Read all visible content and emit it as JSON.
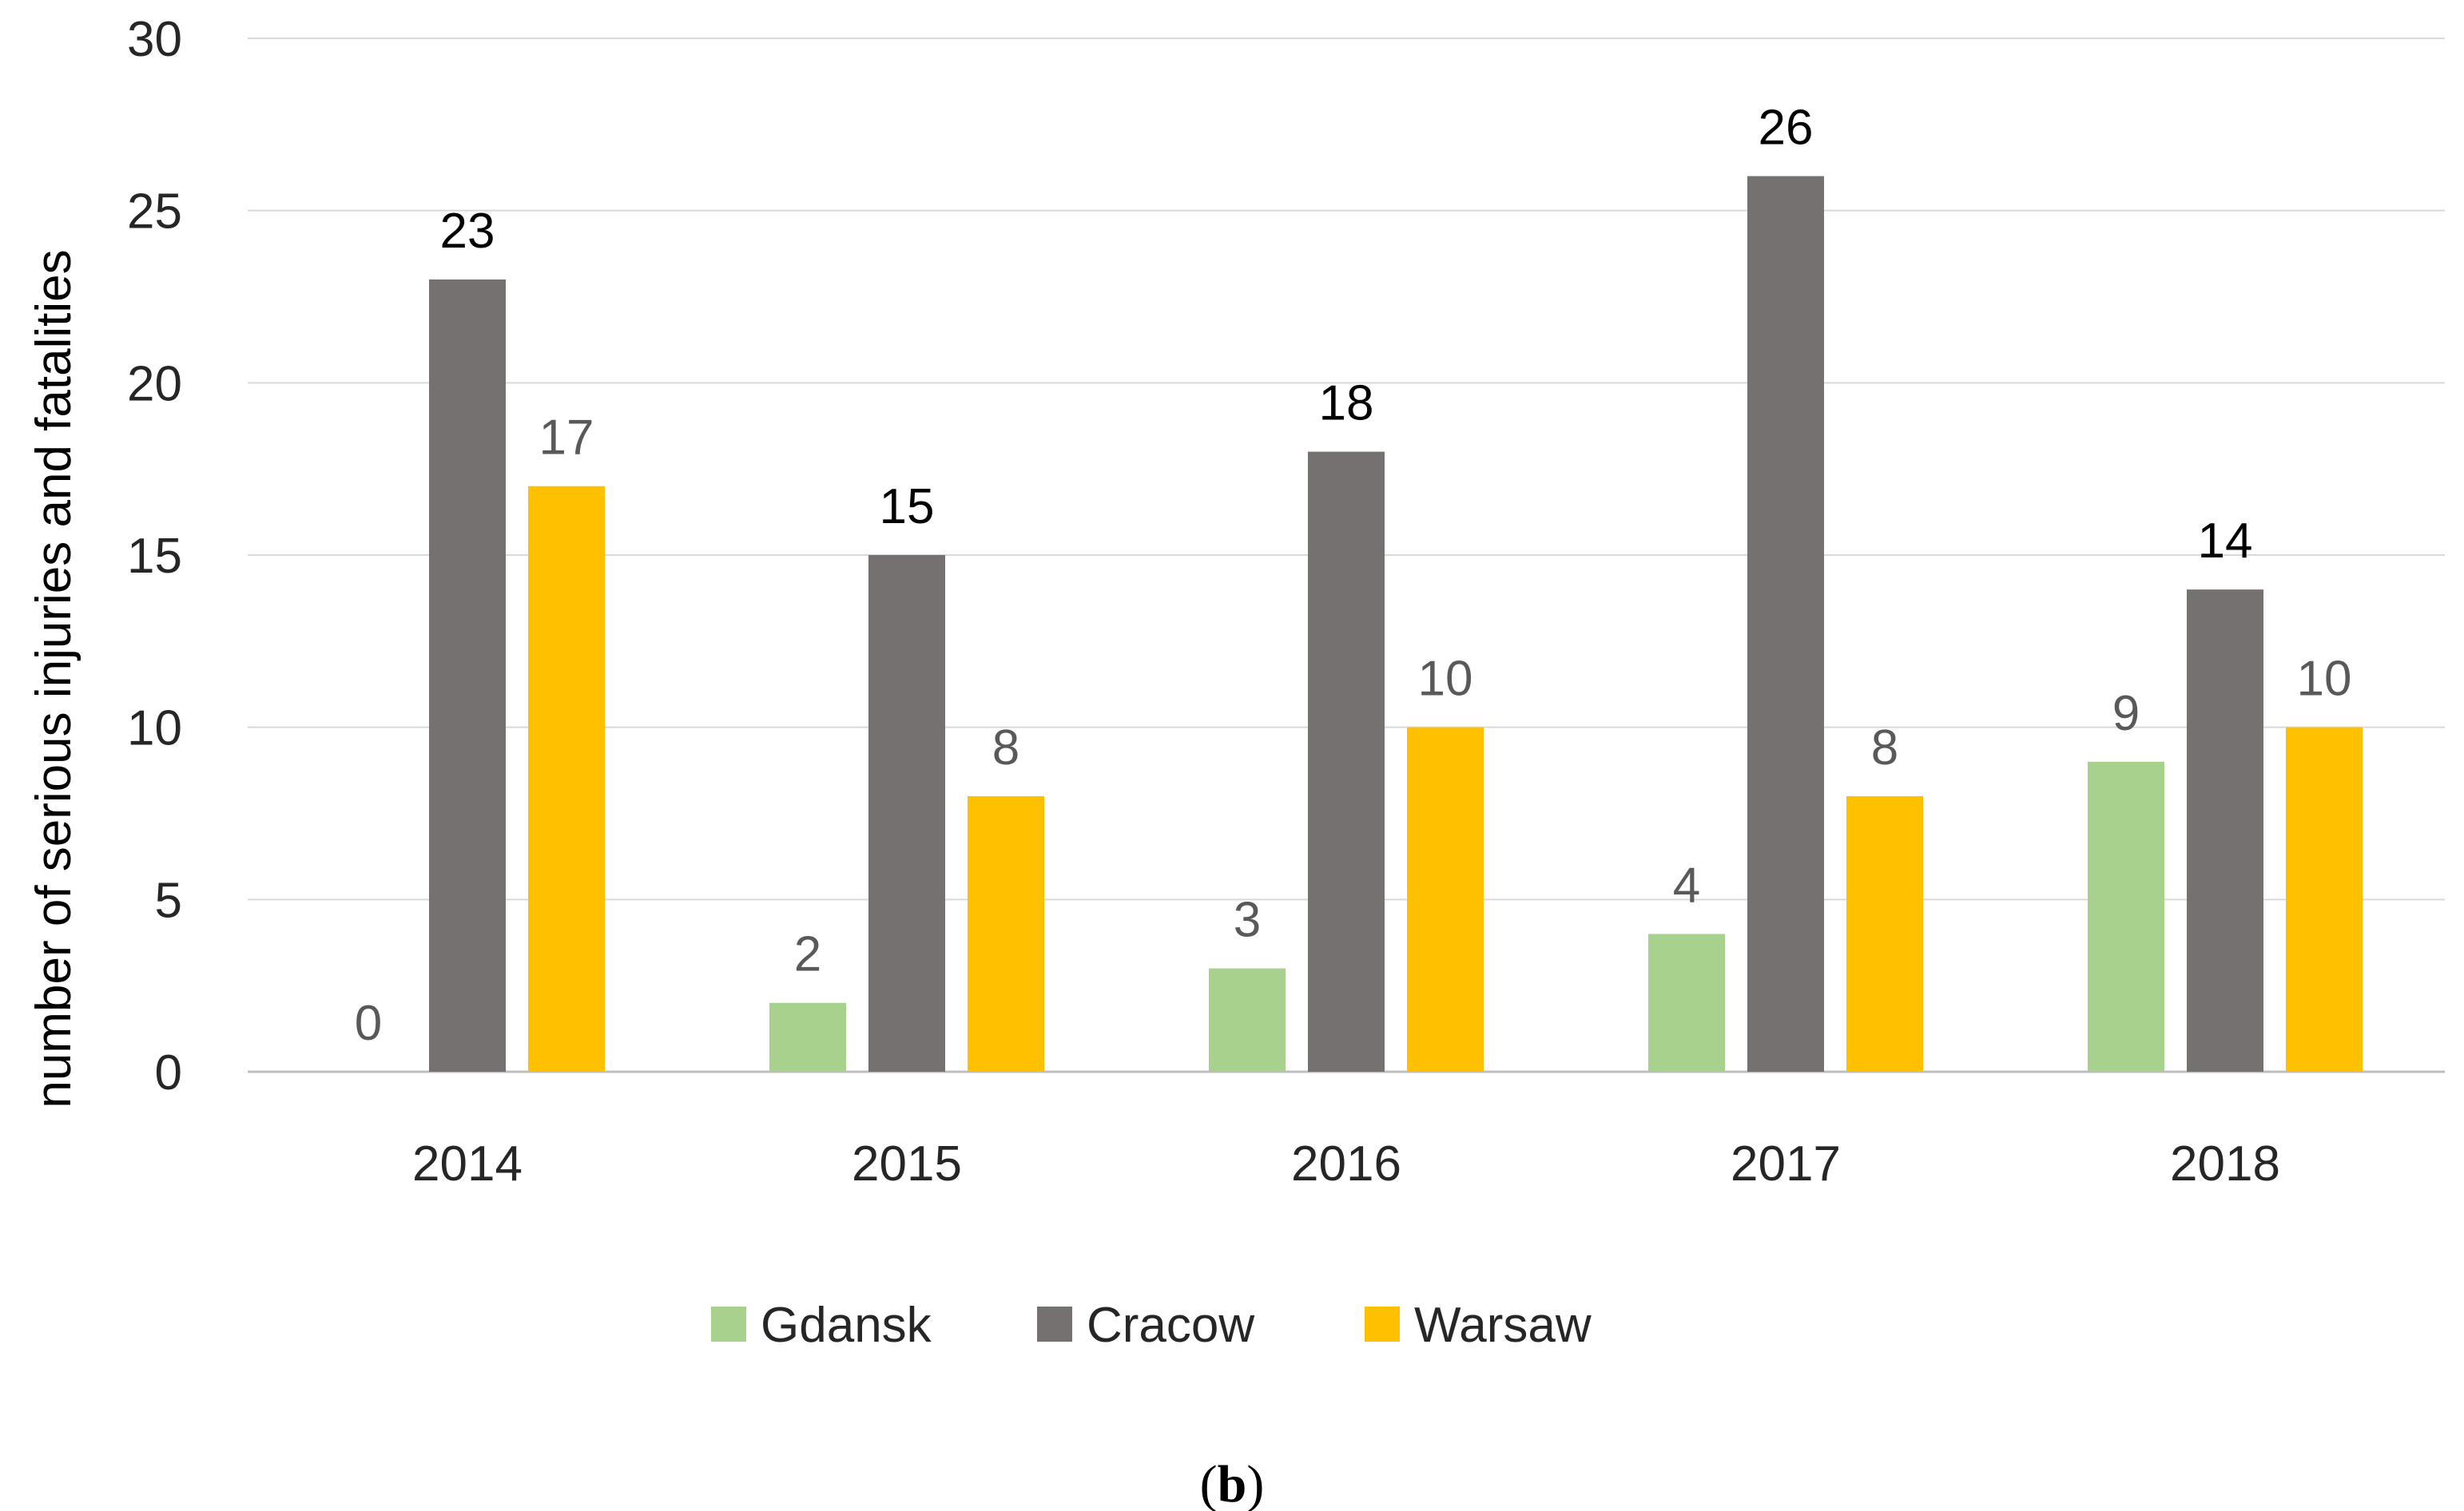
{
  "chart_data": {
    "type": "bar",
    "title": "",
    "ylabel": "number of serious injuries and fatalities",
    "xlabel": "",
    "categories": [
      "2014",
      "2015",
      "2016",
      "2017",
      "2018"
    ],
    "ylim": [
      0,
      30
    ],
    "yticks": [
      0,
      5,
      10,
      15,
      20,
      25,
      30
    ],
    "grid": true,
    "legend_position": "bottom",
    "series": [
      {
        "name": "Gdansk",
        "values": [
          0,
          2,
          3,
          4,
          9
        ],
        "color": "#a9d18e",
        "label_color": "#595959"
      },
      {
        "name": "Cracow",
        "values": [
          23,
          15,
          18,
          26,
          14
        ],
        "color": "#767171",
        "label_color": "#000000"
      },
      {
        "name": "Warsaw",
        "values": [
          17,
          8,
          10,
          8,
          10
        ],
        "color": "#ffc000",
        "label_color": "#595959"
      }
    ]
  },
  "caption": {
    "open": "(",
    "letter": "b",
    "close": ")"
  }
}
